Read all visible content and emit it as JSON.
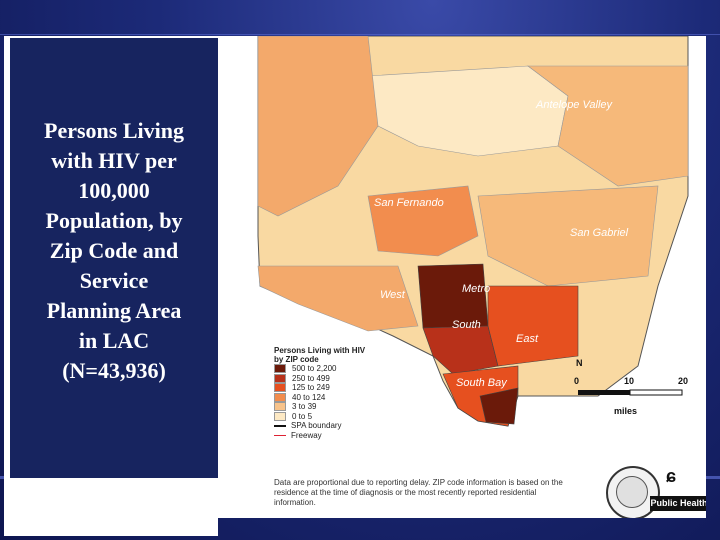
{
  "slide": {
    "title": "Persons Living\nwith HIV per\n100,000\nPopulation, by\nZip Code and\nService\nPlanning Area\nin LAC\n(N=43,936)"
  },
  "map": {
    "regions": {
      "antelope_valley": "Antelope Valley",
      "san_fernando": "San\nFernando",
      "san_gabriel": "San Gabriel",
      "west": "West",
      "metro": "Metro",
      "south": "South",
      "east": "East",
      "south_bay": "South Bay"
    },
    "legend": {
      "title_line1": "Persons Living with HIV",
      "title_line2": "by ZIP code",
      "classes": [
        {
          "label": "500 to 2,200",
          "color": "#6b1a0a"
        },
        {
          "label": "250 to 499",
          "color": "#b8311a"
        },
        {
          "label": "125 to 249",
          "color": "#e6501f"
        },
        {
          "label": "40 to 124",
          "color": "#f28d4e"
        },
        {
          "label": "3 to 39",
          "color": "#f8c38a"
        },
        {
          "label": "0 to 5",
          "color": "#fde9c4"
        }
      ],
      "spa_boundary": "SPA boundary",
      "freeway": "Freeway"
    },
    "footnote": "Data are proportional due to reporting delay. ZIP code information is based on the residence at the time of diagnosis or the most recently reported residential information.",
    "scale": {
      "ticks": [
        "0",
        "10",
        "20"
      ],
      "units": "miles"
    },
    "north_label": "N",
    "logo_text": "Public Health"
  },
  "colors": {
    "background": "#1c2a78",
    "panel": "#17245f",
    "map_bg": "#ffffff"
  }
}
